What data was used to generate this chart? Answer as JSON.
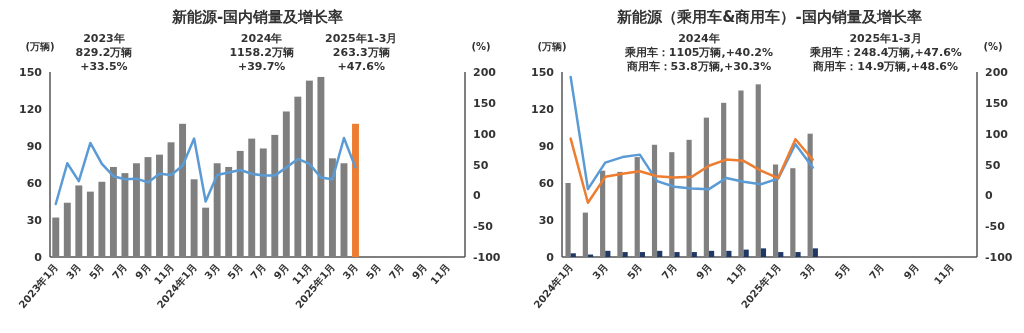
{
  "chart_data": [
    {
      "type": "bar",
      "title": "新能源-国内销量及增长率",
      "ylabel": "(万辆)",
      "y2label": "(%)",
      "categories": [
        "2023年1月",
        null,
        "3月",
        null,
        "5月",
        null,
        "7月",
        null,
        "9月",
        null,
        "11月",
        null,
        "2024年1月",
        null,
        "3月",
        null,
        "5月",
        null,
        "7月",
        null,
        "9月",
        null,
        "11月",
        null,
        "2025年1月",
        null,
        "3月",
        null,
        "5月",
        null,
        "7月",
        null,
        "9月",
        null,
        "11月",
        null
      ],
      "series": [
        {
          "colors": [
            "#7f7f7f",
            "#7f7f7f",
            "#7f7f7f",
            "#7f7f7f",
            "#7f7f7f",
            "#7f7f7f",
            "#7f7f7f",
            "#7f7f7f",
            "#7f7f7f",
            "#7f7f7f",
            "#7f7f7f",
            "#7f7f7f",
            "#7f7f7f",
            "#7f7f7f",
            "#7f7f7f",
            "#7f7f7f",
            "#7f7f7f",
            "#7f7f7f",
            "#7f7f7f",
            "#7f7f7f",
            "#7f7f7f",
            "#7f7f7f",
            "#7f7f7f",
            "#7f7f7f",
            "#7f7f7f",
            "#7f7f7f",
            "#ed7d31",
            null,
            null,
            null,
            null,
            null,
            null,
            null,
            null,
            null
          ],
          "values": [
            32,
            44,
            58,
            53,
            61,
            73,
            68,
            76,
            81,
            83,
            93,
            108,
            63,
            40,
            76,
            73,
            86,
            96,
            88,
            99,
            118,
            130,
            143,
            146,
            80,
            76,
            108,
            null,
            null,
            null,
            null,
            null,
            null,
            null,
            null,
            null
          ]
        },
        {
          "type": "line",
          "axis": "y2",
          "color": "#5b9bd5",
          "values": [
            -14,
            52,
            23,
            85,
            51,
            31,
            26,
            27,
            21,
            35,
            33,
            48,
            92,
            -10,
            33,
            37,
            41,
            35,
            32,
            32,
            45,
            59,
            51,
            29,
            26,
            93,
            45,
            null,
            null,
            null,
            null,
            null,
            null,
            null,
            null,
            null
          ]
        }
      ],
      "ylim": [
        0,
        150
      ],
      "yticks": [
        0,
        30,
        60,
        90,
        120,
        150
      ],
      "y2lim": [
        -100,
        200
      ],
      "y2ticks": [
        -100,
        -50,
        0,
        50,
        100,
        150,
        200
      ],
      "annotations": [
        "2023年",
        "829.2万辆",
        "+33.5%",
        "2024年",
        "1158.2万辆",
        "+39.7%",
        "2025年1-3月",
        "263.3万辆",
        "+47.6%"
      ]
    },
    {
      "type": "bar",
      "title": "新能源（乘用车&商用车）-国内销量及增长率",
      "ylabel": "(万辆)",
      "y2label": "(%)",
      "categories": [
        "2024年1月",
        null,
        "3月",
        null,
        "5月",
        null,
        "7月",
        null,
        "9月",
        null,
        "11月",
        null,
        "2025年1月",
        null,
        "3月",
        null,
        "5月",
        null,
        "7月",
        null,
        "9月",
        null,
        "11月",
        null
      ],
      "series": [
        {
          "color": "#808080",
          "values": [
            60,
            36,
            70,
            69,
            81,
            91,
            85,
            95,
            113,
            125,
            135,
            140,
            75,
            72,
            100,
            null,
            null,
            null,
            null,
            null,
            null,
            null,
            null,
            null
          ]
        },
        {
          "color": "#1f3864",
          "values": [
            3,
            2,
            5,
            4,
            4,
            5,
            4,
            4,
            5,
            5,
            6,
            7,
            4,
            4,
            7,
            null,
            null,
            null,
            null,
            null,
            null,
            null,
            null,
            null
          ]
        },
        {
          "type": "line",
          "axis": "y2",
          "color": "#5b9bd5",
          "values": [
            192,
            10,
            53,
            62,
            66,
            23,
            14,
            11,
            10,
            28,
            22,
            18,
            27,
            83,
            45,
            null,
            null,
            null,
            null,
            null,
            null,
            null,
            null,
            null
          ]
        },
        {
          "type": "line",
          "axis": "y2",
          "color": "#ed7d31",
          "values": [
            92,
            -12,
            30,
            35,
            39,
            31,
            29,
            30,
            48,
            58,
            56,
            40,
            28,
            91,
            58,
            null,
            null,
            null,
            null,
            null,
            null,
            null,
            null,
            null
          ]
        }
      ],
      "ylim": [
        0,
        150
      ],
      "yticks": [
        0,
        30,
        60,
        90,
        120,
        150
      ],
      "y2lim": [
        -100,
        200
      ],
      "y2ticks": [
        -100,
        -50,
        0,
        50,
        100,
        150,
        200
      ],
      "annotations": [
        "2024年",
        "乘用车：1105万辆,+40.2%",
        "商用车：53.8万辆,+30.3%",
        "2025年1-3月",
        "乘用车：248.4万辆,+47.6%",
        "商用车：14.9万辆,+48.6%"
      ]
    }
  ]
}
